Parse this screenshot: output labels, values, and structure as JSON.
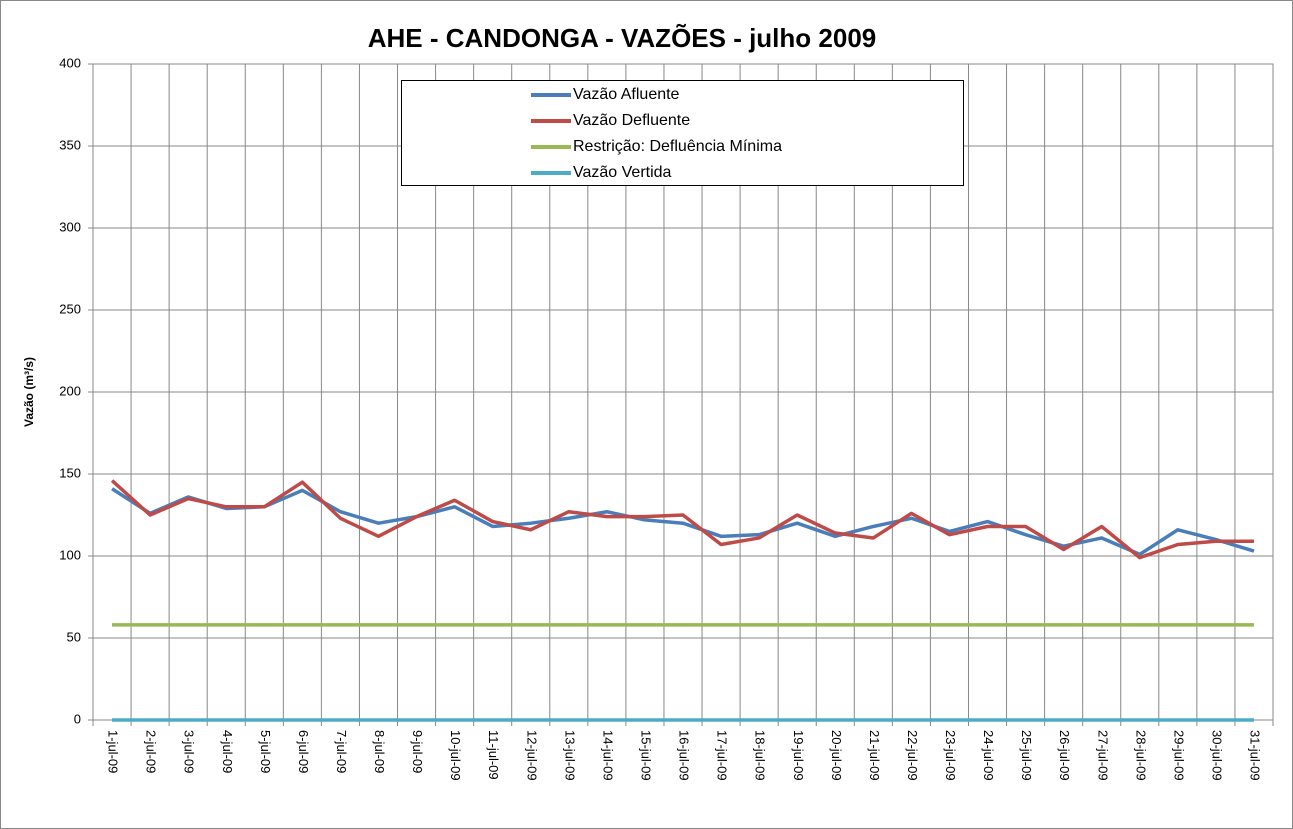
{
  "chart_data": {
    "type": "line",
    "title": "AHE - CANDONGA - VAZÕES - julho 2009",
    "y_label": "Vazão (m³/s)",
    "categories": [
      "1-jul-09",
      "2-jul-09",
      "3-jul-09",
      "4-jul-09",
      "5-jul-09",
      "6-jul-09",
      "7-jul-09",
      "8-jul-09",
      "9-jul-09",
      "10-jul-09",
      "11-jul-09",
      "12-jul-09",
      "13-jul-09",
      "14-jul-09",
      "15-jul-09",
      "16-jul-09",
      "17-jul-09",
      "18-jul-09",
      "19-jul-09",
      "20-jul-09",
      "21-jul-09",
      "22-jul-09",
      "23-jul-09",
      "24-jul-09",
      "25-jul-09",
      "26-jul-09",
      "27-jul-09",
      "28-jul-09",
      "29-jul-09",
      "30-jul-09",
      "31-jul-09"
    ],
    "series": [
      {
        "name": "Vazão Afluente",
        "color": "#4a7ebb",
        "values": [
          141,
          126,
          136,
          129,
          130,
          140,
          127,
          120,
          124,
          130,
          118,
          120,
          123,
          127,
          122,
          120,
          112,
          113,
          120,
          112,
          118,
          123,
          115,
          121,
          113,
          106,
          111,
          101,
          116,
          110,
          103
        ]
      },
      {
        "name": "Vazão Defluente",
        "color": "#be4b48",
        "values": [
          146,
          125,
          135,
          130,
          130,
          145,
          123,
          112,
          124,
          134,
          121,
          116,
          127,
          124,
          124,
          125,
          107,
          111,
          125,
          114,
          111,
          126,
          113,
          118,
          118,
          104,
          118,
          99,
          107,
          109,
          109
        ]
      },
      {
        "name": "Restrição: Defluência Mínima",
        "color": "#98b954",
        "values": [
          58,
          58,
          58,
          58,
          58,
          58,
          58,
          58,
          58,
          58,
          58,
          58,
          58,
          58,
          58,
          58,
          58,
          58,
          58,
          58,
          58,
          58,
          58,
          58,
          58,
          58,
          58,
          58,
          58,
          58,
          58
        ]
      },
      {
        "name": "Vazão Vertida",
        "color": "#4bacc6",
        "values": [
          0,
          0,
          0,
          0,
          0,
          0,
          0,
          0,
          0,
          0,
          0,
          0,
          0,
          0,
          0,
          0,
          0,
          0,
          0,
          0,
          0,
          0,
          0,
          0,
          0,
          0,
          0,
          0,
          0,
          0,
          0
        ]
      }
    ],
    "ylim": [
      0,
      400
    ],
    "yticks": [
      0,
      50,
      100,
      150,
      200,
      250,
      300,
      350,
      400
    ],
    "grid": true,
    "legend": "top"
  }
}
